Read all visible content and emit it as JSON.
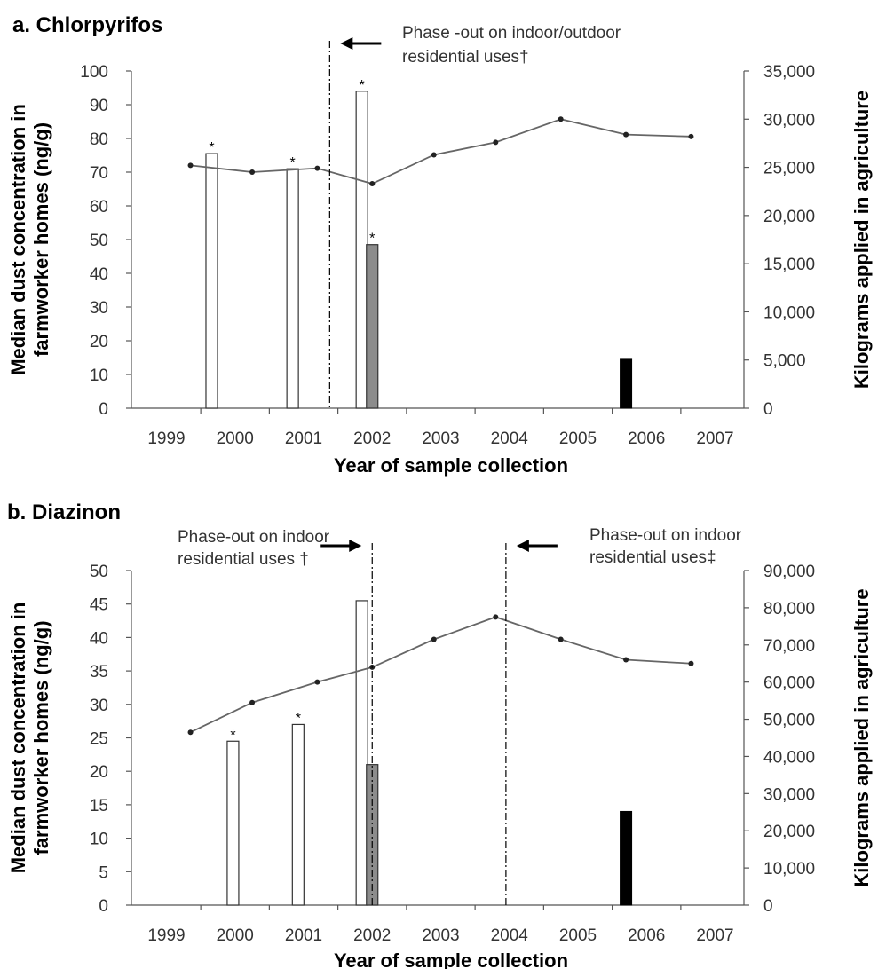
{
  "chart_data": [
    {
      "type": "bar",
      "panel_label": "a. Chlorpyrifos",
      "title": "a. Chlorpyrifos",
      "xlabel": "Year of sample collection",
      "ylabel": "Median dust concentration in farmworker homes (ng/g)",
      "ylabel_line1": "Median dust concentration in",
      "ylabel_line2": "farmworker homes (ng/g)",
      "y2label": "Kilograms applied in agriculture",
      "categories": [
        "1999",
        "2000",
        "2001",
        "2002",
        "2003",
        "2004",
        "2005",
        "2006",
        "2007"
      ],
      "ylim": [
        0,
        100
      ],
      "y2lim": [
        0,
        35000
      ],
      "yticks": [
        "0",
        "10",
        "20",
        "30",
        "40",
        "50",
        "60",
        "70",
        "80",
        "90",
        "100"
      ],
      "y2ticks": [
        "0",
        "5,000",
        "10,000",
        "15,000",
        "20,000",
        "25,000",
        "30,000",
        "35,000"
      ],
      "bars": [
        {
          "x": 1999.66,
          "value": 75.5,
          "fill": "white",
          "star": "*"
        },
        {
          "x": 2000.84,
          "value": 71,
          "fill": "white",
          "star": "*"
        },
        {
          "x": 2001.85,
          "value": 94,
          "fill": "white",
          "star": "*"
        },
        {
          "x": 2002.0,
          "value": 48.5,
          "fill": "gray",
          "star": "*"
        },
        {
          "x": 2005.7,
          "value": 14.5,
          "fill": "black",
          "star": ""
        }
      ],
      "line_series": {
        "x": [
          1999.35,
          2000.25,
          2001.2,
          2002.0,
          2002.9,
          2003.8,
          2004.75,
          2005.7,
          2006.65
        ],
        "values": [
          25200,
          24500,
          24900,
          23300,
          26300,
          27600,
          30000,
          28400,
          28200
        ]
      },
      "phase_lines": [
        {
          "x": 2001.38,
          "label_line1": "Phase -out on indoor/outdoor",
          "label_line2": "residential uses†",
          "arrow": "left"
        }
      ]
    },
    {
      "type": "bar",
      "panel_label": "b. Diazinon",
      "title": "b. Diazinon",
      "xlabel": "Year of sample collection",
      "ylabel": "Median dust concentration in farmworker homes (ng/g)",
      "ylabel_line1": "Median dust concentration in",
      "ylabel_line2": "farmworker homes (ng/g)",
      "y2label": "Kilograms applied in agriculture",
      "categories": [
        "1999",
        "2000",
        "2001",
        "2002",
        "2003",
        "2004",
        "2005",
        "2006",
        "2007"
      ],
      "ylim": [
        0,
        50
      ],
      "y2lim": [
        0,
        90000
      ],
      "yticks": [
        "0",
        "5",
        "10",
        "15",
        "20",
        "25",
        "30",
        "35",
        "40",
        "45",
        "50"
      ],
      "y2ticks": [
        "0",
        "10,000",
        "20,000",
        "30,000",
        "40,000",
        "50,000",
        "60,000",
        "70,000",
        "80,000",
        "90,000"
      ],
      "bars": [
        {
          "x": 1999.97,
          "value": 24.5,
          "fill": "white",
          "star": "*"
        },
        {
          "x": 2000.92,
          "value": 27,
          "fill": "white",
          "star": "*"
        },
        {
          "x": 2001.85,
          "value": 45.5,
          "fill": "white",
          "star": ""
        },
        {
          "x": 2002.0,
          "value": 21,
          "fill": "gray",
          "star": ""
        },
        {
          "x": 2005.7,
          "value": 14,
          "fill": "black",
          "star": ""
        }
      ],
      "line_series": {
        "x": [
          1999.35,
          2000.25,
          2001.2,
          2002.0,
          2002.9,
          2003.8,
          2004.75,
          2005.7,
          2006.65
        ],
        "values": [
          46500,
          54500,
          60000,
          64000,
          71500,
          77500,
          71500,
          66000,
          65000
        ]
      },
      "phase_lines": [
        {
          "x": 2002.0,
          "label_line1": "Phase-out on indoor",
          "label_line2": "residential uses †",
          "arrow": "right"
        },
        {
          "x": 2003.95,
          "label_line1": "Phase-out on indoor",
          "label_line2": "residential uses‡",
          "arrow": "left"
        }
      ]
    }
  ]
}
